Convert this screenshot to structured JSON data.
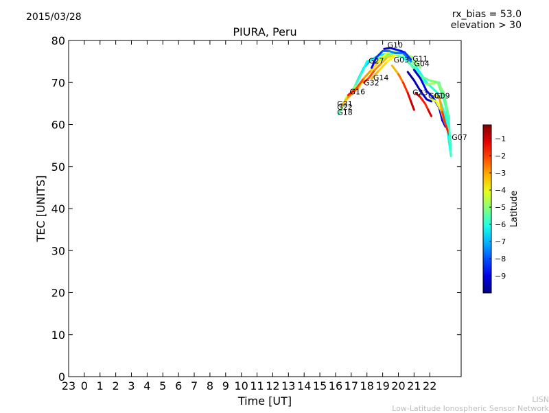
{
  "header": {
    "date": "2015/03/28",
    "rx_bias": "rx_bias = 53.0",
    "elevation": "elevation > 30"
  },
  "credit": {
    "line1": "LISN",
    "line2": "Low-Latitude Ionospheric Sensor Network"
  },
  "chart_data": {
    "type": "line",
    "title": "PIURA, Peru",
    "xlabel": "Time [UT]",
    "ylabel": "TEC [UNITS]",
    "ylim": [
      0,
      80
    ],
    "xlim": [
      -1,
      24
    ],
    "x_ticks": [
      -1,
      0,
      1,
      2,
      3,
      4,
      5,
      6,
      7,
      8,
      9,
      10,
      11,
      12,
      13,
      14,
      15,
      16,
      17,
      18,
      19,
      20,
      21,
      22
    ],
    "x_tick_labels": [
      "23",
      "0",
      "1",
      "2",
      "3",
      "4",
      "5",
      "6",
      "7",
      "8",
      "9",
      "10",
      "11",
      "12",
      "13",
      "14",
      "15",
      "16",
      "17",
      "18",
      "19",
      "20",
      "21",
      "22"
    ],
    "y_ticks": [
      0,
      10,
      20,
      30,
      40,
      50,
      60,
      70,
      80
    ],
    "grid": false,
    "colorbar": {
      "label": "Latitude",
      "range": [
        -10,
        -0.2
      ],
      "ticks": [
        -1,
        -2,
        -3,
        -4,
        -5,
        -6,
        -7,
        -8,
        -9
      ],
      "tick_labels": [
        "−1",
        "−2",
        "−3",
        "−4",
        "−5",
        "−6",
        "−7",
        "−8",
        "−9"
      ]
    },
    "series": [
      {
        "name": "G18",
        "points": [
          [
            16.2,
            62.5,
            -6.0
          ],
          [
            16.6,
            65.5,
            -5.5
          ],
          [
            17.0,
            67.5,
            -5.0
          ],
          [
            17.4,
            70.5,
            -6.5
          ],
          [
            17.8,
            73.5,
            -7.0
          ],
          [
            18.3,
            75.5,
            -6.8
          ],
          [
            18.8,
            76.5,
            -6.5
          ],
          [
            19.5,
            77.0,
            -6.5
          ],
          [
            20.2,
            77.5,
            -6.8
          ],
          [
            21.0,
            74.5,
            -6.5
          ],
          [
            21.8,
            70.0,
            -6.0
          ],
          [
            22.5,
            67.5,
            -5.8
          ],
          [
            23.0,
            62.0,
            -6.2
          ],
          [
            23.35,
            52.5,
            -6.5
          ]
        ]
      },
      {
        "name": "G22",
        "points": [
          [
            16.3,
            63.5,
            -5.0
          ],
          [
            16.7,
            66.5,
            -4.5
          ],
          [
            17.0,
            67.5,
            -4.0
          ],
          [
            17.3,
            69.5,
            -5.5
          ],
          [
            17.7,
            72.5,
            -6.0
          ],
          [
            18.0,
            75.0,
            -6.5
          ],
          [
            18.5,
            75.5,
            -6.0
          ],
          [
            19.0,
            76.0,
            -5.5
          ],
          [
            19.6,
            76.8,
            -5.5
          ],
          [
            20.3,
            76.0,
            -6.0
          ],
          [
            21.0,
            73.5,
            -6.3
          ],
          [
            21.8,
            69.5,
            -5.0
          ],
          [
            22.5,
            70.0,
            -4.5
          ],
          [
            23.0,
            65.0,
            -5.5
          ],
          [
            23.35,
            54.0,
            -6.0
          ]
        ]
      },
      {
        "name": "G31",
        "points": [
          [
            16.4,
            64.5,
            -3.5
          ],
          [
            16.8,
            66.5,
            -3.0
          ],
          [
            17.1,
            67.5,
            -2.5
          ],
          [
            17.5,
            69.0,
            -3.0
          ],
          [
            17.9,
            71.5,
            -4.0
          ],
          [
            18.4,
            73.5,
            -4.5
          ],
          [
            18.9,
            75.5,
            -4.8
          ],
          [
            19.5,
            76.5,
            -5.0
          ],
          [
            20.3,
            77.0,
            -5.3
          ],
          [
            21.2,
            72.0,
            -5.5
          ],
          [
            22.0,
            70.5,
            -5.0
          ],
          [
            22.6,
            70.0,
            -5.3
          ],
          [
            23.1,
            63.0,
            -5.6
          ],
          [
            23.35,
            55.0,
            -6.0
          ]
        ]
      },
      {
        "name": "G16",
        "points": [
          [
            16.8,
            67.0,
            -1.5
          ],
          [
            17.3,
            68.5,
            -1.8
          ],
          [
            17.8,
            71.0,
            -2.5
          ],
          [
            18.3,
            73.0,
            -3.3
          ],
          [
            18.8,
            75.5,
            -3.8
          ],
          [
            19.3,
            77.0,
            -4.2
          ],
          [
            19.9,
            77.5,
            -4.6
          ],
          [
            20.5,
            76.5,
            -5.0
          ],
          [
            21.1,
            74.0,
            -5.2
          ]
        ]
      },
      {
        "name": "G32",
        "points": [
          [
            17.8,
            70.0,
            -2.0
          ],
          [
            18.1,
            71.0,
            -1.8
          ],
          [
            18.5,
            73.0,
            -2.5
          ],
          [
            18.9,
            74.5,
            -3.0
          ],
          [
            19.3,
            76.0,
            -3.3
          ],
          [
            19.7,
            76.5,
            -3.6
          ],
          [
            20.1,
            77.0,
            -4.0
          ],
          [
            20.6,
            76.0,
            -4.5
          ]
        ]
      },
      {
        "name": "G14",
        "points": [
          [
            18.3,
            71.0,
            -3.0
          ],
          [
            18.8,
            73.0,
            -3.3
          ],
          [
            19.3,
            75.0,
            -3.7
          ],
          [
            19.8,
            76.5,
            -4.0
          ],
          [
            20.3,
            77.0,
            -4.3
          ],
          [
            20.9,
            76.0,
            -4.8
          ],
          [
            21.4,
            73.5,
            -5.2
          ]
        ]
      },
      {
        "name": "G27",
        "points": [
          [
            18.3,
            73.5,
            -9.0
          ],
          [
            18.6,
            76.0,
            -8.5
          ],
          [
            19.0,
            77.5,
            -8.0
          ],
          [
            19.4,
            77.5,
            -7.5
          ],
          [
            19.8,
            77.0,
            -7.5
          ],
          [
            20.3,
            77.0,
            -7.8
          ],
          [
            20.8,
            75.0,
            -7.3
          ]
        ]
      },
      {
        "name": "G10",
        "points": [
          [
            19.1,
            78.0,
            -9.5
          ],
          [
            19.5,
            78.2,
            -9.3
          ],
          [
            19.9,
            77.8,
            -8.8
          ],
          [
            20.4,
            77.2,
            -8.5
          ],
          [
            20.8,
            75.5,
            -8.0
          ]
        ]
      },
      {
        "name": "G03",
        "points": [
          [
            19.6,
            74.0,
            -3.5
          ],
          [
            20.0,
            72.0,
            -2.8
          ],
          [
            20.3,
            70.0,
            -2.2
          ],
          [
            20.6,
            67.5,
            -1.5
          ],
          [
            20.8,
            65.5,
            -1.0
          ],
          [
            21.0,
            63.5,
            -0.6
          ]
        ]
      },
      {
        "name": "G11",
        "points": [
          [
            21.0,
            73.0,
            -9.5
          ],
          [
            21.4,
            71.0,
            -9.0
          ],
          [
            21.8,
            68.0,
            -8.8
          ],
          [
            22.2,
            66.5,
            -8.5
          ],
          [
            22.6,
            64.0,
            -8.6
          ],
          [
            22.8,
            61.0,
            -8.8
          ],
          [
            23.0,
            59.5,
            -9.0
          ]
        ]
      },
      {
        "name": "G04",
        "points": [
          [
            20.6,
            72.5,
            -9.8
          ],
          [
            21.0,
            70.5,
            -9.6
          ],
          [
            21.4,
            68.0,
            -9.4
          ],
          [
            21.8,
            66.0,
            -9.2
          ],
          [
            22.1,
            65.5,
            -9.3
          ]
        ]
      },
      {
        "name": "G23",
        "points": [
          [
            21.1,
            67.5,
            -0.6
          ],
          [
            21.4,
            66.5,
            -1.2
          ],
          [
            21.7,
            65.0,
            -2.0
          ],
          [
            21.9,
            63.5,
            -1.5
          ],
          [
            22.1,
            62.0,
            -0.6
          ]
        ]
      },
      {
        "name": "G01",
        "points": [
          [
            22.1,
            66.0,
            -4.5
          ],
          [
            22.4,
            65.5,
            -4.2
          ],
          [
            22.7,
            63.5,
            -3.8
          ],
          [
            23.0,
            60.0,
            -2.5
          ],
          [
            23.3,
            57.0,
            -0.8
          ]
        ]
      },
      {
        "name": "G09",
        "points": [
          [
            22.3,
            67.0,
            -4.0
          ],
          [
            22.6,
            66.5,
            -3.5
          ],
          [
            22.8,
            63.0,
            -2.5
          ],
          [
            23.0,
            60.0,
            -1.5
          ]
        ]
      },
      {
        "name": "G07",
        "points": [
          [
            22.6,
            69.5,
            -5.0
          ],
          [
            22.9,
            67.5,
            -5.2
          ],
          [
            23.2,
            62.0,
            -5.5
          ],
          [
            23.35,
            52.5,
            -6.0
          ]
        ]
      }
    ],
    "labels": [
      {
        "text": "G10",
        "x": 19.3,
        "y": 78.3
      },
      {
        "text": "G27",
        "x": 18.1,
        "y": 74.5
      },
      {
        "text": "G03",
        "x": 19.7,
        "y": 74.8
      },
      {
        "text": "G11",
        "x": 20.9,
        "y": 75.0
      },
      {
        "text": "G04",
        "x": 21.0,
        "y": 73.9
      },
      {
        "text": "G14",
        "x": 18.4,
        "y": 70.5
      },
      {
        "text": "G32",
        "x": 17.8,
        "y": 69.3
      },
      {
        "text": "G16",
        "x": 16.9,
        "y": 67.2
      },
      {
        "text": "G23",
        "x": 20.9,
        "y": 67.0
      },
      {
        "text": "G01",
        "x": 21.9,
        "y": 66.2
      },
      {
        "text": "G09",
        "x": 22.3,
        "y": 66.2
      },
      {
        "text": "G31",
        "x": 16.1,
        "y": 64.3
      },
      {
        "text": "G22",
        "x": 16.1,
        "y": 63.5
      },
      {
        "text": "G18",
        "x": 16.1,
        "y": 62.3
      },
      {
        "text": "G07",
        "x": 23.4,
        "y": 56.3
      }
    ]
  }
}
